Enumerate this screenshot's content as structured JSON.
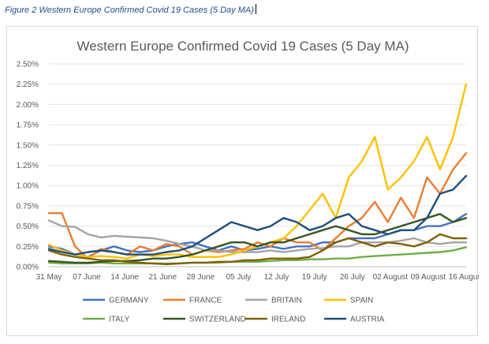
{
  "caption": "Figure 2 Western Europe Confirmed Covid 19 Cases (5 Day MA)",
  "chart_data": {
    "type": "line",
    "title": "Western Europe Confirmed Covid 19 Cases (5 Day MA)",
    "xlabel": "",
    "ylabel": "",
    "ylim": [
      0,
      0.025
    ],
    "y_ticks": [
      "0.00%",
      "0.25%",
      "0.50%",
      "0.75%",
      "1.00%",
      "1.25%",
      "1.50%",
      "1.75%",
      "2.00%",
      "2.25%",
      "2.50%"
    ],
    "x_ticks": [
      "31 May",
      "07 June",
      "14 June",
      "21 June",
      "28 June",
      "05 July",
      "12 July",
      "19 July",
      "26 July",
      "02 August",
      "09 August",
      "16 August"
    ],
    "gridlines": true,
    "legend_position": "bottom",
    "series": [
      {
        "name": "GERMANY",
        "color": "#4472C4",
        "values": [
          0.0025,
          0.0022,
          0.0015,
          0.0012,
          0.002,
          0.0025,
          0.002,
          0.0018,
          0.002,
          0.0025,
          0.0028,
          0.003,
          0.0025,
          0.002,
          0.0025,
          0.002,
          0.0022,
          0.0025,
          0.0022,
          0.0025,
          0.0025,
          0.003,
          0.003,
          0.0035,
          0.0035,
          0.0035,
          0.004,
          0.0045,
          0.0045,
          0.005,
          0.005,
          0.0055,
          0.0065
        ]
      },
      {
        "name": "FRANCE",
        "color": "#ED7D31",
        "values": [
          0.0066,
          0.0066,
          0.0025,
          0.001,
          0.0022,
          0.0018,
          0.0015,
          0.0025,
          0.002,
          0.0028,
          0.0025,
          0.0015,
          0.002,
          0.0018,
          0.002,
          0.0022,
          0.003,
          0.0025,
          0.0035,
          0.003,
          0.003,
          0.002,
          0.0035,
          0.005,
          0.006,
          0.008,
          0.0055,
          0.0085,
          0.006,
          0.011,
          0.009,
          0.012,
          0.014
        ]
      },
      {
        "name": "BRITAIN",
        "color": "#A5A5A5",
        "values": [
          0.0057,
          0.005,
          0.0049,
          0.004,
          0.0036,
          0.0038,
          0.0037,
          0.0036,
          0.0035,
          0.0032,
          0.0028,
          0.0025,
          0.002,
          0.002,
          0.0018,
          0.0018,
          0.0018,
          0.002,
          0.0018,
          0.002,
          0.0022,
          0.0023,
          0.0025,
          0.0025,
          0.003,
          0.003,
          0.003,
          0.0032,
          0.0035,
          0.003,
          0.0028,
          0.003,
          0.003
        ]
      },
      {
        "name": "SPAIN",
        "color": "#FFC000",
        "values": [
          0.0027,
          0.002,
          0.0015,
          0.0012,
          0.0013,
          0.0012,
          0.001,
          0.0015,
          0.0013,
          0.0015,
          0.0015,
          0.0012,
          0.0012,
          0.0012,
          0.0015,
          0.002,
          0.0025,
          0.003,
          0.0035,
          0.005,
          0.007,
          0.009,
          0.006,
          0.011,
          0.013,
          0.016,
          0.0095,
          0.011,
          0.013,
          0.016,
          0.012,
          0.016,
          0.0225
        ]
      },
      {
        "name": "ITALY",
        "color": "#70AD47",
        "values": [
          0.0005,
          0.0004,
          0.0004,
          0.0004,
          0.0005,
          0.0004,
          0.0004,
          0.0004,
          0.0004,
          0.0004,
          0.0004,
          0.0005,
          0.0005,
          0.0005,
          0.0006,
          0.0006,
          0.0006,
          0.0007,
          0.0008,
          0.0008,
          0.0009,
          0.0009,
          0.001,
          0.001,
          0.0012,
          0.0013,
          0.0014,
          0.0015,
          0.0016,
          0.0017,
          0.0018,
          0.002,
          0.0024
        ]
      },
      {
        "name": "SWITZERLAND",
        "color": "#375623",
        "values": [
          0.0007,
          0.0006,
          0.0005,
          0.0005,
          0.0006,
          0.0007,
          0.0007,
          0.0008,
          0.001,
          0.001,
          0.0012,
          0.0015,
          0.002,
          0.0025,
          0.003,
          0.003,
          0.0025,
          0.003,
          0.003,
          0.0035,
          0.004,
          0.0045,
          0.005,
          0.0045,
          0.004,
          0.004,
          0.0045,
          0.005,
          0.0055,
          0.006,
          0.0065,
          0.0055,
          0.006
        ]
      },
      {
        "name": "IRELAND",
        "color": "#806000",
        "values": [
          0.002,
          0.0015,
          0.0012,
          0.001,
          0.0008,
          0.0008,
          0.0006,
          0.0005,
          0.0004,
          0.0003,
          0.0004,
          0.0005,
          0.0005,
          0.0006,
          0.0006,
          0.0008,
          0.0008,
          0.001,
          0.001,
          0.001,
          0.0012,
          0.002,
          0.003,
          0.0035,
          0.003,
          0.0025,
          0.003,
          0.0028,
          0.0025,
          0.003,
          0.004,
          0.0035,
          0.0035
        ]
      },
      {
        "name": "AUSTRIA",
        "color": "#1F4E79",
        "values": [
          0.0022,
          0.0018,
          0.0015,
          0.0018,
          0.002,
          0.0018,
          0.0015,
          0.0015,
          0.0015,
          0.0018,
          0.002,
          0.0025,
          0.0035,
          0.0045,
          0.0055,
          0.005,
          0.0045,
          0.005,
          0.006,
          0.0055,
          0.0045,
          0.005,
          0.006,
          0.0065,
          0.005,
          0.0045,
          0.004,
          0.0045,
          0.0045,
          0.006,
          0.009,
          0.0095,
          0.0112
        ]
      }
    ]
  }
}
